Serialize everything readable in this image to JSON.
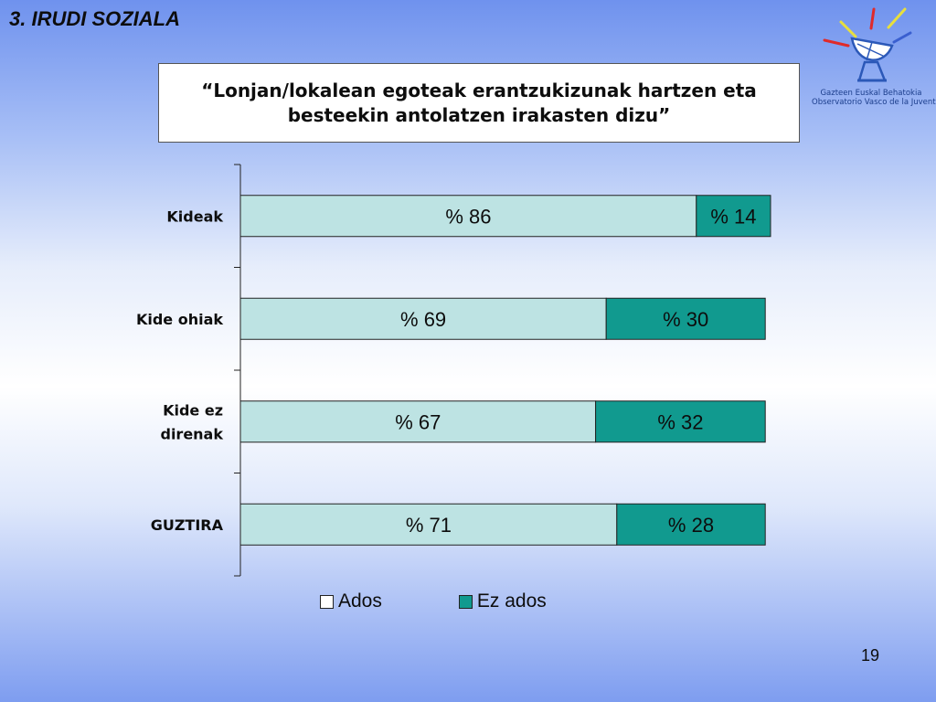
{
  "slide": {
    "section_title": "3. IRUDI SOZIALA",
    "page_number": "19"
  },
  "logo": {
    "line1": "Gazteen Euskal Behatokia",
    "line2": "Observatorio Vasco de la Juventud",
    "icon": "satellite-dish-icon"
  },
  "chart_data": {
    "type": "bar",
    "orientation": "horizontal",
    "stacked": true,
    "title": "“Lonjan/lokalean egoteak erantzukizunak hartzen eta besteekin antolatzen irakasten dizu”",
    "categories": [
      "Kideak",
      "Kide ohiak",
      "Kide ez direnak",
      "GUZTIRA"
    ],
    "series": [
      {
        "name": "Ados",
        "values": [
          86,
          69,
          67,
          71
        ],
        "labels": [
          "% 86",
          "% 69",
          "% 67",
          "% 71"
        ],
        "color": "#bde3e3"
      },
      {
        "name": "Ez ados",
        "values": [
          14,
          30,
          32,
          28
        ],
        "labels": [
          "% 14",
          "% 30",
          "% 32",
          "% 28"
        ],
        "color": "#119a8f"
      }
    ],
    "xlim": [
      0,
      100
    ],
    "grid": false,
    "legend": "bottom"
  }
}
